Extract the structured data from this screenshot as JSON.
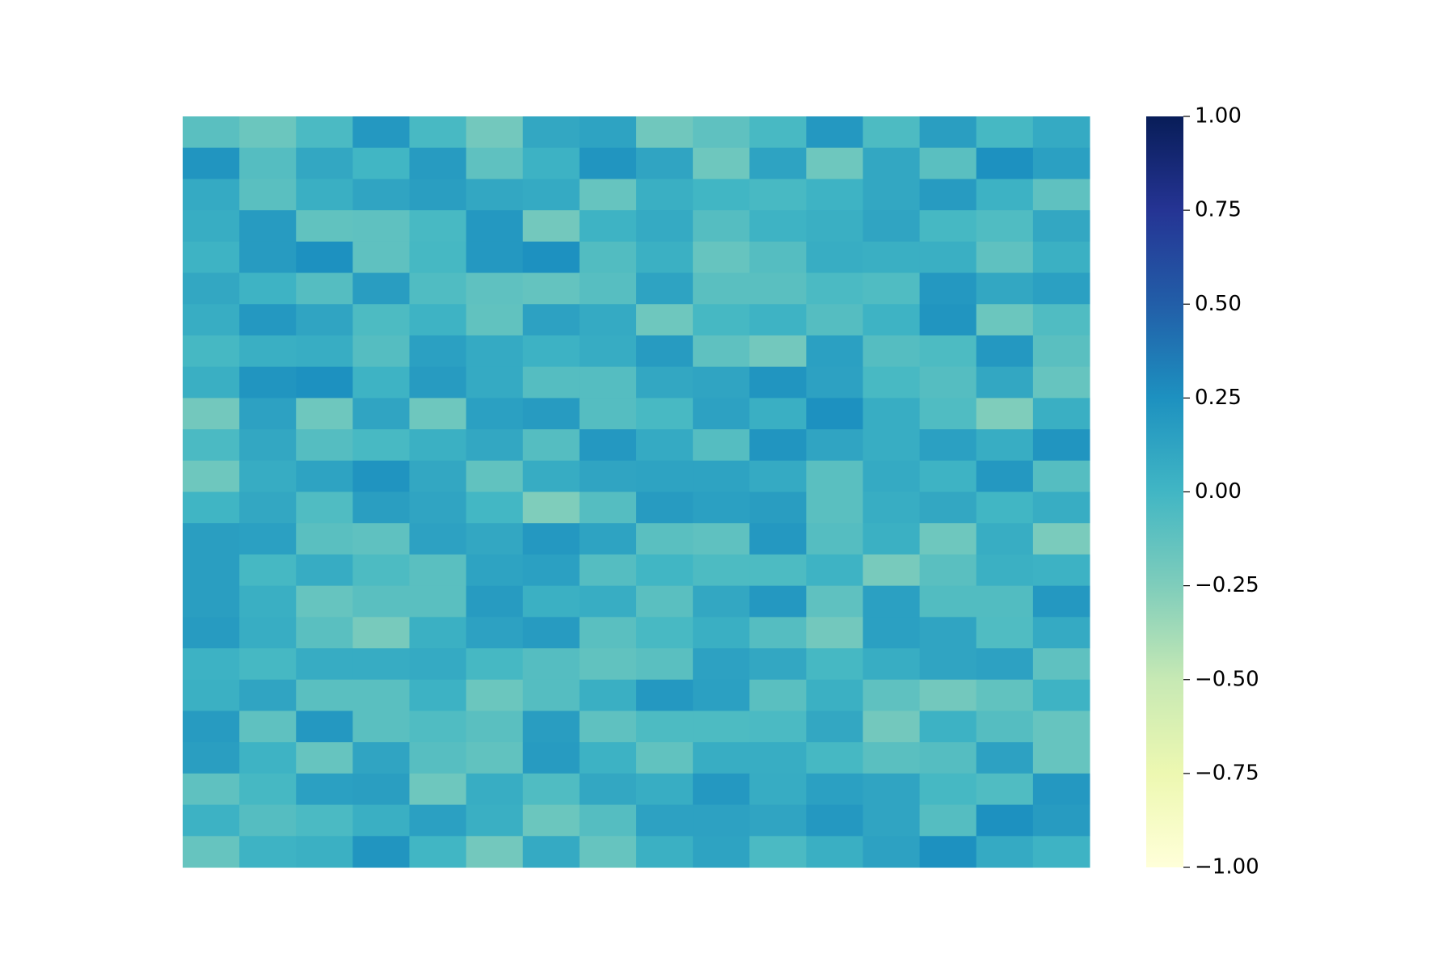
{
  "chart_data": {
    "type": "heatmap",
    "colormap": "YlGnBu",
    "clim": [
      -1,
      1
    ],
    "colorbar_ticks": [
      {
        "value": -1,
        "label": "−1.00"
      },
      {
        "value": -0.75,
        "label": "−0.75"
      },
      {
        "value": -0.5,
        "label": "−0.50"
      },
      {
        "value": -0.25,
        "label": "−0.25"
      },
      {
        "value": 0,
        "label": "0.00"
      },
      {
        "value": 0.25,
        "label": "0.25"
      },
      {
        "value": 0.5,
        "label": "0.50"
      },
      {
        "value": 0.75,
        "label": "0.75"
      },
      {
        "value": 1,
        "label": "1.00"
      }
    ],
    "values": [
      [
        -0.1,
        -0.17,
        -0.04,
        0.2,
        -0.03,
        -0.2,
        0.1,
        0.13,
        -0.19,
        -0.12,
        -0.03,
        0.2,
        -0.05,
        0.16,
        -0.02,
        0.08
      ],
      [
        0.22,
        -0.08,
        0.1,
        0.0,
        0.18,
        -0.12,
        0.03,
        0.22,
        0.12,
        -0.18,
        0.13,
        -0.18,
        0.1,
        -0.1,
        0.25,
        0.15
      ],
      [
        0.08,
        -0.1,
        0.05,
        0.12,
        0.16,
        0.1,
        0.08,
        -0.15,
        0.05,
        0.0,
        -0.03,
        0.02,
        0.1,
        0.18,
        0.03,
        -0.12
      ],
      [
        0.06,
        0.18,
        -0.13,
        -0.12,
        -0.03,
        0.2,
        -0.2,
        0.02,
        0.08,
        -0.08,
        0.02,
        0.05,
        0.12,
        -0.02,
        -0.06,
        0.1
      ],
      [
        0.02,
        0.18,
        0.25,
        -0.12,
        -0.02,
        0.2,
        0.25,
        -0.07,
        0.04,
        -0.15,
        -0.08,
        0.06,
        0.05,
        0.05,
        -0.12,
        0.04
      ],
      [
        0.1,
        0.02,
        -0.08,
        0.17,
        -0.06,
        -0.12,
        -0.14,
        -0.09,
        0.13,
        -0.1,
        -0.1,
        -0.04,
        -0.06,
        0.2,
        0.1,
        0.15
      ],
      [
        0.06,
        0.2,
        0.12,
        -0.05,
        0.02,
        -0.13,
        0.14,
        0.08,
        -0.18,
        -0.02,
        0.02,
        -0.08,
        0.02,
        0.22,
        -0.17,
        -0.06
      ],
      [
        -0.02,
        0.05,
        0.06,
        -0.08,
        0.15,
        0.08,
        0.03,
        0.07,
        0.18,
        -0.12,
        -0.2,
        0.15,
        -0.08,
        -0.05,
        0.2,
        -0.1
      ],
      [
        0.05,
        0.22,
        0.25,
        0.02,
        0.18,
        0.08,
        -0.08,
        -0.08,
        0.1,
        0.12,
        0.22,
        0.14,
        -0.03,
        -0.08,
        0.1,
        -0.15
      ],
      [
        -0.2,
        0.14,
        -0.18,
        0.12,
        -0.18,
        0.15,
        0.18,
        -0.08,
        -0.03,
        0.14,
        0.05,
        0.25,
        0.06,
        -0.06,
        -0.25,
        0.05
      ],
      [
        -0.04,
        0.1,
        -0.08,
        -0.03,
        0.04,
        0.1,
        -0.08,
        0.2,
        0.08,
        -0.08,
        0.22,
        0.12,
        0.06,
        0.15,
        0.06,
        0.22
      ],
      [
        -0.18,
        0.07,
        0.13,
        0.23,
        0.1,
        -0.13,
        0.07,
        0.12,
        0.13,
        0.13,
        0.08,
        -0.1,
        0.08,
        0.02,
        0.2,
        -0.08
      ],
      [
        0.01,
        0.1,
        -0.06,
        0.16,
        0.12,
        -0.01,
        -0.25,
        -0.08,
        0.18,
        0.15,
        0.17,
        -0.1,
        0.06,
        0.1,
        0.0,
        0.06
      ],
      [
        0.16,
        0.15,
        -0.1,
        -0.12,
        0.14,
        0.1,
        0.2,
        0.13,
        -0.1,
        -0.12,
        0.2,
        -0.08,
        0.04,
        -0.18,
        0.06,
        -0.23
      ],
      [
        0.16,
        -0.02,
        0.07,
        -0.05,
        -0.1,
        0.13,
        0.15,
        -0.08,
        0.0,
        -0.05,
        -0.05,
        0.02,
        -0.22,
        -0.1,
        0.04,
        0.03
      ],
      [
        0.16,
        0.05,
        -0.15,
        -0.1,
        -0.1,
        0.18,
        0.04,
        0.06,
        -0.1,
        0.1,
        0.2,
        -0.12,
        0.15,
        -0.07,
        -0.07,
        0.2
      ],
      [
        0.18,
        0.06,
        -0.1,
        -0.22,
        0.04,
        0.14,
        0.18,
        -0.1,
        -0.03,
        0.05,
        -0.08,
        -0.2,
        0.15,
        0.12,
        -0.06,
        0.08
      ],
      [
        0.03,
        -0.02,
        0.07,
        0.07,
        0.08,
        -0.02,
        -0.08,
        -0.13,
        -0.1,
        0.14,
        0.1,
        -0.02,
        0.06,
        0.12,
        0.14,
        -0.12
      ],
      [
        0.04,
        0.12,
        -0.1,
        -0.1,
        0.03,
        -0.17,
        -0.08,
        0.05,
        0.2,
        0.15,
        -0.1,
        0.04,
        -0.12,
        -0.2,
        -0.13,
        0.02
      ],
      [
        0.18,
        -0.12,
        0.2,
        -0.1,
        -0.06,
        -0.1,
        0.17,
        -0.12,
        -0.05,
        -0.05,
        -0.04,
        0.1,
        -0.2,
        0.03,
        -0.08,
        -0.15
      ],
      [
        0.16,
        0.02,
        -0.15,
        0.12,
        -0.09,
        -0.13,
        0.18,
        0.03,
        -0.13,
        0.06,
        0.06,
        -0.02,
        -0.1,
        -0.08,
        0.14,
        -0.15
      ],
      [
        -0.12,
        -0.02,
        0.15,
        0.16,
        -0.18,
        0.06,
        -0.06,
        0.1,
        0.06,
        0.2,
        0.07,
        0.15,
        0.12,
        -0.02,
        -0.06,
        0.2
      ],
      [
        0.03,
        -0.08,
        -0.04,
        0.05,
        0.15,
        0.05,
        -0.17,
        -0.08,
        0.14,
        0.14,
        0.12,
        0.2,
        0.12,
        -0.08,
        0.25,
        0.18
      ],
      [
        -0.15,
        0.02,
        0.04,
        0.22,
        0.0,
        -0.2,
        0.08,
        -0.15,
        0.04,
        0.13,
        -0.04,
        0.05,
        0.14,
        0.25,
        0.08,
        0.02
      ]
    ]
  }
}
